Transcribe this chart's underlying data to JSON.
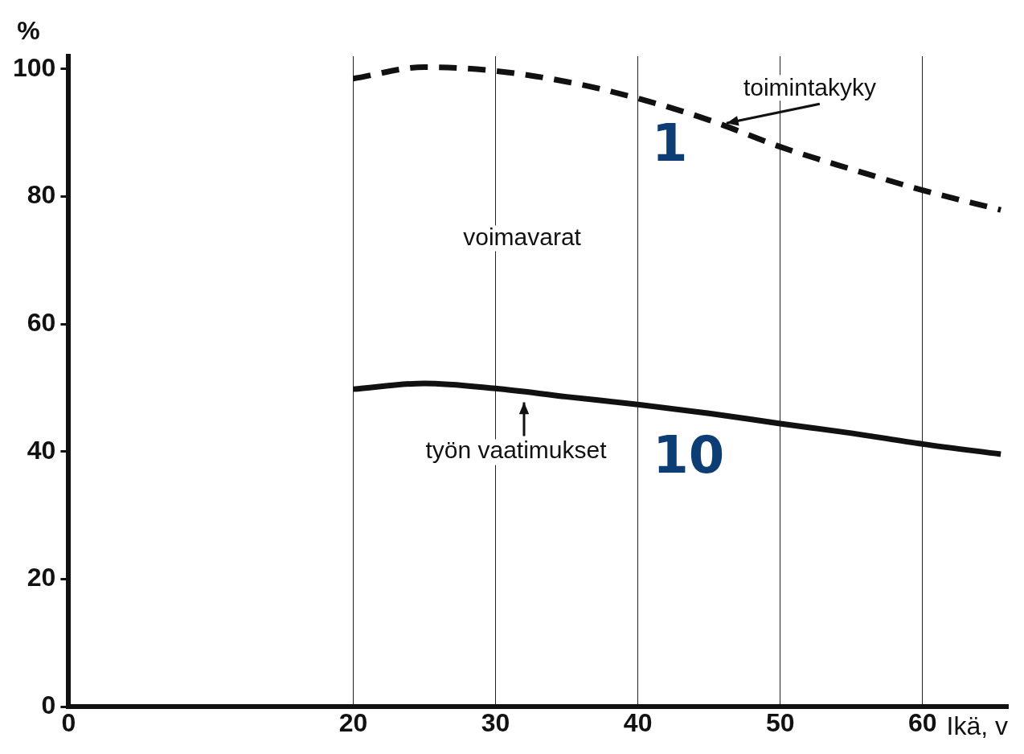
{
  "chart_data": {
    "type": "line",
    "xlabel": "Ikä, v",
    "ylabel": "%",
    "xlim": [
      0,
      66
    ],
    "xticks": [
      0,
      20,
      30,
      40,
      50,
      60
    ],
    "ylim": [
      0,
      102
    ],
    "yticks": [
      0,
      20,
      40,
      60,
      80,
      100
    ],
    "grid": "x",
    "legend": false,
    "marker": "none",
    "series": [
      {
        "color": "#111111",
        "line_style": "dashed",
        "x": [
          20,
          25,
          30,
          35,
          40,
          45,
          50,
          55,
          60,
          65.5
        ],
        "values": [
          98.5,
          100.3,
          99.7,
          98,
          95.4,
          92,
          87.8,
          84.3,
          81,
          77.9
        ]
      },
      {
        "color": "#111111",
        "line_style": "solid",
        "x": [
          20,
          25,
          30,
          35,
          40,
          45,
          50,
          55,
          60,
          65.5
        ],
        "values": [
          49.8,
          50.7,
          49.9,
          48.6,
          47.4,
          46,
          44.4,
          42.9,
          41.2,
          39.6
        ]
      }
    ],
    "annotations": [
      {
        "text": "toimintakyky",
        "x": 46,
        "y": 91
      },
      {
        "text": "työn vaatimukset",
        "x": 32,
        "y": 49.5
      },
      "voimavarat",
      "1",
      "10"
    ]
  }
}
